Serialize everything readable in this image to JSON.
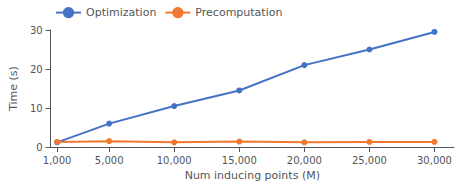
{
  "chart_data": {
    "type": "line",
    "xlabel": "Num inducing points (M)",
    "ylabel": "Time (s)",
    "x": [
      1000,
      5000,
      10000,
      15000,
      20000,
      25000,
      30000
    ],
    "series": [
      {
        "name": "Optimization",
        "color": "#4472c4",
        "values": [
          1.2,
          6.0,
          10.5,
          14.5,
          21.0,
          25.0,
          29.5
        ]
      },
      {
        "name": "Precomputation",
        "color": "#f07830",
        "values": [
          1.3,
          1.5,
          1.2,
          1.4,
          1.2,
          1.3,
          1.3
        ]
      }
    ],
    "xlim": [
      500,
      31500
    ],
    "xticks": [
      {
        "value": 1000,
        "label": "1,000"
      },
      {
        "value": 5000,
        "label": "5,000"
      },
      {
        "value": 10000,
        "label": "10,000"
      },
      {
        "value": 15000,
        "label": "15,000"
      },
      {
        "value": 20000,
        "label": "20,000"
      },
      {
        "value": 25000,
        "label": "25,000"
      },
      {
        "value": 30000,
        "label": "30,000"
      }
    ],
    "ylim": [
      0,
      30
    ],
    "yticks": [
      0,
      10,
      20,
      30
    ],
    "grid": false,
    "legend": "upper left",
    "marker": "circle"
  }
}
